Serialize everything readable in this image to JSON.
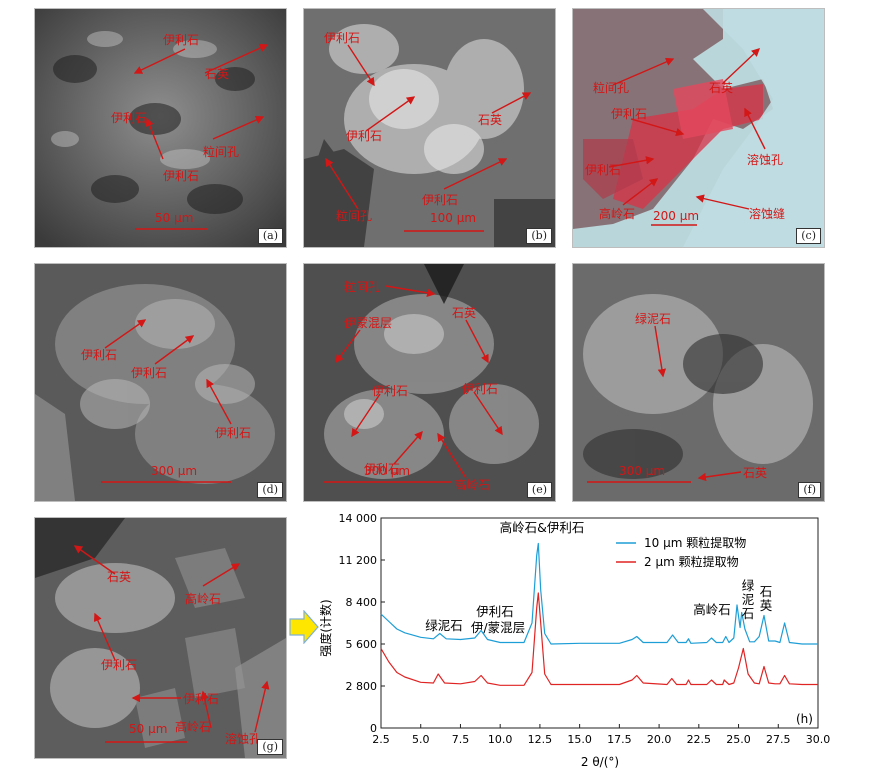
{
  "panels": [
    {
      "id": "a",
      "tag": "(a)",
      "scale": "50 μm",
      "labels": [
        "伊利石",
        "石英",
        "伊利石",
        "粒间孔",
        "伊利石"
      ]
    },
    {
      "id": "b",
      "tag": "(b)",
      "scale": "100 μm",
      "labels": [
        "伊利石",
        "伊利石",
        "石英",
        "伊利石",
        "粒间孔"
      ]
    },
    {
      "id": "c",
      "tag": "(c)",
      "scale": "200 μm",
      "labels": [
        "粒间孔",
        "石英",
        "伊利石",
        "溶蚀孔",
        "伊利石",
        "高岭石",
        "溶蚀缝"
      ]
    },
    {
      "id": "d",
      "tag": "(d)",
      "scale": "300 μm",
      "labels": [
        "伊利石",
        "伊利石",
        "伊利石"
      ]
    },
    {
      "id": "e",
      "tag": "(e)",
      "scale": "300 μm",
      "labels": [
        "粒间孔",
        "石英",
        "伊蒙混层",
        "伊利石",
        "伊利石",
        "伊利石",
        "高岭石"
      ]
    },
    {
      "id": "f",
      "tag": "(f)",
      "scale": "300 μm",
      "labels": [
        "绿泥石",
        "石英"
      ]
    },
    {
      "id": "g",
      "tag": "(g)",
      "scale": "50 μm",
      "labels": [
        "石英",
        "高岭石",
        "伊利石",
        "伊利石",
        "高岭石",
        "溶蚀孔"
      ]
    }
  ],
  "chart_data": {
    "type": "line",
    "tag": "(h)",
    "xlabel": "2 θ/(°)",
    "ylabel": "强度(计数)",
    "xlim": [
      2.5,
      30.0
    ],
    "ylim": [
      0,
      14000
    ],
    "xticks": [
      "2.5",
      "5.0",
      "7.5",
      "10.0",
      "12.5",
      "15.0",
      "17.5",
      "20.0",
      "22.5",
      "25.0",
      "27.5",
      "30.0"
    ],
    "yticks": [
      "0",
      "2 800",
      "5 600",
      "8 400",
      "11 200",
      "14 000"
    ],
    "annotations": [
      "高岭石&伊利石",
      "绿泥石",
      "伊利石",
      "伊/蒙混层",
      "高岭石",
      "绿",
      "泥",
      "石",
      "石",
      "英"
    ],
    "series": [
      {
        "name": "10 μm 颗粒提取物",
        "color": "#1e9ed6",
        "x": [
          2.5,
          3.0,
          3.5,
          4.0,
          5.0,
          5.8,
          6.2,
          6.6,
          7.5,
          8.4,
          8.8,
          9.2,
          10.0,
          11.5,
          12.0,
          12.3,
          12.4,
          12.55,
          12.8,
          13.2,
          15.0,
          17.5,
          18.3,
          18.6,
          19.0,
          20.5,
          20.85,
          21.2,
          21.7,
          21.85,
          22.0,
          23.0,
          23.3,
          23.6,
          24.0,
          24.2,
          24.4,
          24.7,
          24.9,
          25.1,
          25.2,
          25.4,
          25.7,
          26.0,
          26.3,
          26.6,
          26.9,
          27.3,
          27.6,
          27.9,
          28.2,
          29.0,
          30.0
        ],
        "y": [
          7600,
          7100,
          6600,
          6350,
          6050,
          5950,
          6300,
          5950,
          5900,
          6000,
          6500,
          5900,
          5700,
          5700,
          7000,
          11500,
          12300,
          9200,
          6300,
          5600,
          5650,
          5650,
          5900,
          6100,
          5700,
          5700,
          6200,
          5700,
          5700,
          5950,
          5650,
          5700,
          6000,
          5700,
          5700,
          6100,
          5700,
          6000,
          8200,
          6700,
          7700,
          6600,
          5750,
          5750,
          6100,
          7500,
          5800,
          5800,
          5700,
          7000,
          5700,
          5600,
          5600
        ]
      },
      {
        "name": "2 μm 颗粒提取物",
        "color": "#e02424",
        "x": [
          2.5,
          3.0,
          3.5,
          4.0,
          5.0,
          5.8,
          6.1,
          6.5,
          7.5,
          8.4,
          8.8,
          9.2,
          10.0,
          11.5,
          12.0,
          12.3,
          12.4,
          12.55,
          12.8,
          13.2,
          15.0,
          17.5,
          18.3,
          18.6,
          19.0,
          20.5,
          20.8,
          21.1,
          21.7,
          21.85,
          22.0,
          23.0,
          23.3,
          23.6,
          24.0,
          24.1,
          24.4,
          24.7,
          25.0,
          25.3,
          25.6,
          26.0,
          26.3,
          26.6,
          26.9,
          27.3,
          27.6,
          27.9,
          28.2,
          29.0,
          30.0
        ],
        "y": [
          5300,
          4400,
          3700,
          3400,
          3050,
          3000,
          3600,
          3000,
          2950,
          3100,
          3500,
          3000,
          2850,
          2850,
          3700,
          8000,
          9000,
          7000,
          3600,
          2900,
          2900,
          2900,
          3200,
          3500,
          3000,
          2900,
          3300,
          2900,
          2900,
          3200,
          2900,
          2900,
          3200,
          2900,
          2900,
          3200,
          2900,
          3000,
          4000,
          5300,
          3600,
          3000,
          2950,
          4100,
          3000,
          2950,
          2950,
          3500,
          2950,
          2900,
          2900
        ]
      }
    ]
  }
}
